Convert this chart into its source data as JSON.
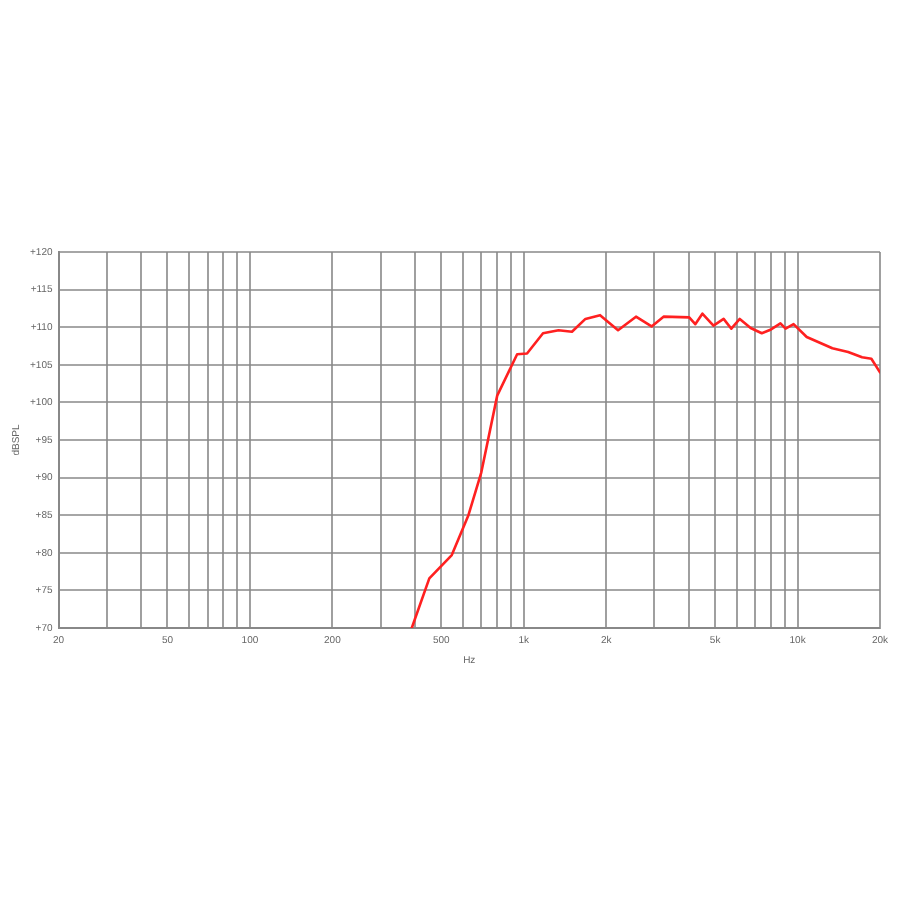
{
  "chart_data": {
    "type": "line",
    "xlabel": "Hz",
    "ylabel": "dBSPL",
    "log": "x",
    "grid": true,
    "legend": false,
    "marker": "none",
    "line_style": "solid",
    "x": [
      390,
      452,
      546,
      628,
      700,
      800,
      946,
      1028,
      1176,
      1340,
      1500,
      1680,
      1900,
      2210,
      2570,
      2930,
      3240,
      4020,
      4230,
      4490,
      4930,
      5370,
      5730,
      6150,
      6740,
      7400,
      8000,
      8660,
      9040,
      9670,
      10800,
      13400,
      15300,
      17200,
      18600,
      20000
    ],
    "series": [
      {
        "color": "#ff2020",
        "values": [
          70,
          76.6,
          79.7,
          85,
          90.7,
          100.9,
          106.4,
          106.5,
          109.2,
          109.6,
          109.4,
          111.1,
          111.6,
          109.6,
          111.4,
          110.1,
          111.4,
          111.3,
          110.4,
          111.8,
          110.2,
          111.1,
          109.8,
          111.1,
          109.9,
          109.2,
          109.7,
          110.5,
          109.8,
          110.4,
          108.7,
          107.2,
          106.7,
          106,
          105.8,
          104
        ]
      }
    ],
    "xlim": [
      20,
      20000
    ],
    "xticks": [
      20,
      {
        "value": 30,
        "label": null
      },
      {
        "value": 40,
        "label": null
      },
      50,
      {
        "value": 60,
        "label": null
      },
      {
        "value": 70,
        "label": null
      },
      {
        "value": 80,
        "label": null
      },
      {
        "value": 90,
        "label": null
      },
      100,
      200,
      {
        "value": 300,
        "label": null
      },
      {
        "value": 400,
        "label": null
      },
      500,
      {
        "value": 600,
        "label": null
      },
      {
        "value": 700,
        "label": null
      },
      {
        "value": 800,
        "label": null
      },
      {
        "value": 900,
        "label": null
      },
      {
        "value": 1000,
        "label": "1k"
      },
      {
        "value": 2000,
        "label": "2k"
      },
      {
        "value": 3000,
        "label": null
      },
      {
        "value": 4000,
        "label": null
      },
      {
        "value": 5000,
        "label": "5k"
      },
      {
        "value": 6000,
        "label": null
      },
      {
        "value": 7000,
        "label": null
      },
      {
        "value": 8000,
        "label": null
      },
      {
        "value": 9000,
        "label": null
      },
      {
        "value": 10000,
        "label": "10k"
      },
      {
        "value": 20000,
        "label": "20k"
      }
    ],
    "ylim": [
      70,
      120
    ],
    "yticks": [
      {
        "value": 70,
        "label": "+70"
      },
      {
        "value": 75,
        "label": "+75"
      },
      {
        "value": 80,
        "label": "+80"
      },
      {
        "value": 85,
        "label": "+85"
      },
      {
        "value": 90,
        "label": "+90"
      },
      {
        "value": 95,
        "label": "+95"
      },
      {
        "value": 100,
        "label": "+100"
      },
      {
        "value": 105,
        "label": "+105"
      },
      {
        "value": 110,
        "label": "+110"
      },
      {
        "value": 115,
        "label": "+115"
      },
      {
        "value": 120,
        "label": "+120"
      }
    ]
  }
}
